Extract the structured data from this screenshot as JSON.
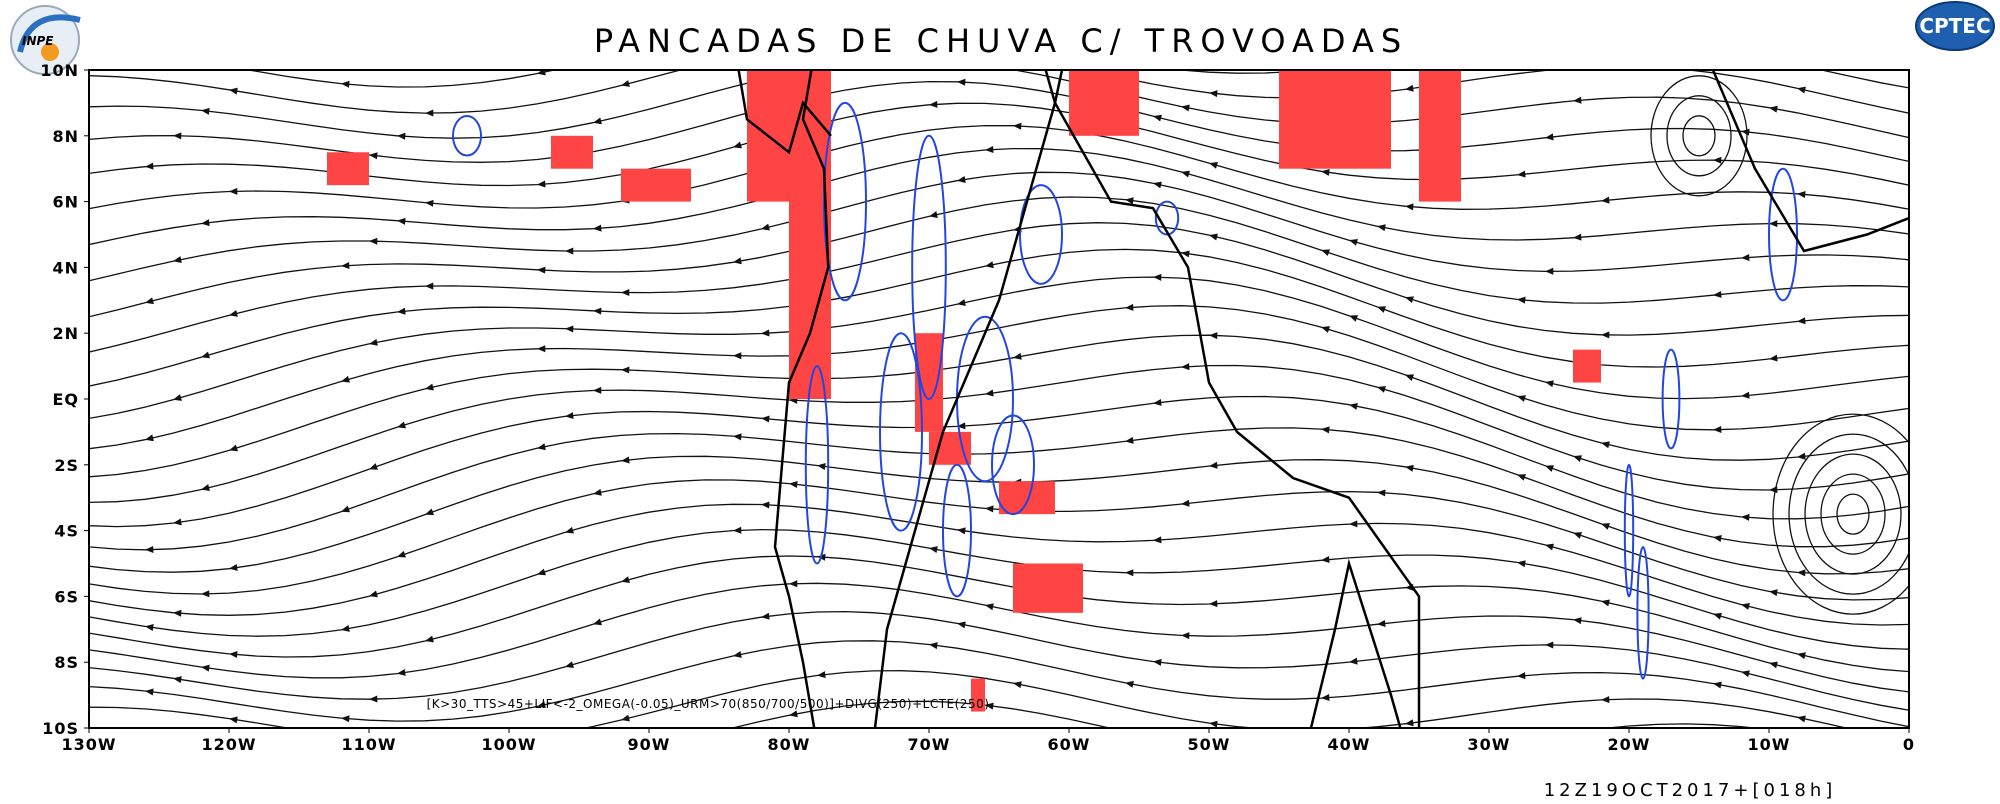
{
  "header": {
    "title": "PANCADAS DE CHUVA C/ TROVOADAS"
  },
  "logos": {
    "left": "INPE",
    "right": "CPTEC"
  },
  "axes": {
    "lat_labels": [
      "10N",
      "8N",
      "6N",
      "4N",
      "2N",
      "EQ",
      "2S",
      "4S",
      "6S",
      "8S",
      "10S"
    ],
    "lon_labels": [
      "130W",
      "120W",
      "110W",
      "100W",
      "90W",
      "80W",
      "70W",
      "60W",
      "50W",
      "40W",
      "30W",
      "20W",
      "10W",
      "0"
    ]
  },
  "footer": {
    "formula": "[K>30_TTS>45+LIF<-2_OMEGA(-0.05)_URM>70(850/700/500)]+DIVG(250)+LCTE(250)",
    "timestamp": "12Z19OCT2017+[018h]"
  }
}
